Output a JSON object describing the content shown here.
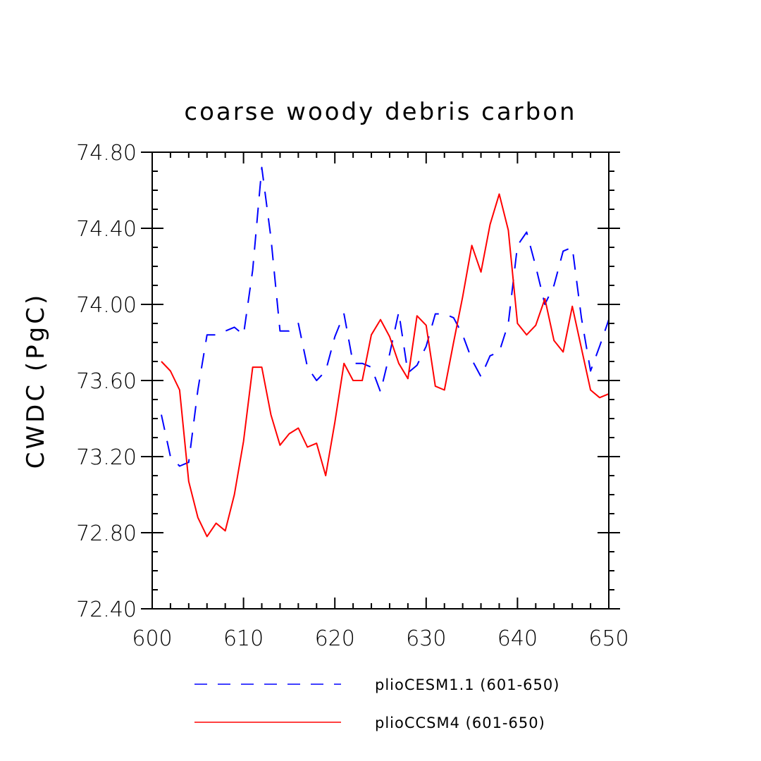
{
  "chart_data": {
    "type": "line",
    "title": "coarse woody debris carbon",
    "xlabel": "",
    "ylabel": "CWDC  (PgC)",
    "xlim": [
      600,
      650
    ],
    "ylim": [
      72.4,
      74.8
    ],
    "x_ticks": [
      600,
      610,
      620,
      630,
      640,
      650
    ],
    "x_tick_labels": [
      "600",
      "610",
      "620",
      "630",
      "640",
      "650"
    ],
    "y_ticks": [
      72.4,
      72.8,
      73.2,
      73.6,
      74.0,
      74.4,
      74.8
    ],
    "y_tick_labels": [
      "72.40",
      "72.80",
      "73.20",
      "73.60",
      "74.00",
      "74.40",
      "74.80"
    ],
    "x": [
      601,
      602,
      603,
      604,
      605,
      606,
      607,
      608,
      609,
      610,
      611,
      612,
      613,
      614,
      615,
      616,
      617,
      618,
      619,
      620,
      621,
      622,
      623,
      624,
      625,
      626,
      627,
      628,
      629,
      630,
      631,
      632,
      633,
      634,
      635,
      636,
      637,
      638,
      639,
      640,
      641,
      642,
      643,
      644,
      645,
      646,
      647,
      648,
      649,
      650
    ],
    "series": [
      {
        "name": "plioCESM1.1 (601-650)",
        "color": "#0000ff",
        "style": "dashed",
        "values": [
          73.42,
          73.2,
          73.15,
          73.17,
          73.55,
          73.84,
          73.84,
          73.86,
          73.88,
          73.84,
          74.18,
          74.72,
          74.35,
          73.86,
          73.86,
          73.9,
          73.67,
          73.6,
          73.65,
          73.83,
          73.95,
          73.69,
          73.69,
          73.67,
          73.54,
          73.74,
          73.96,
          73.64,
          73.68,
          73.78,
          73.95,
          73.95,
          73.93,
          73.84,
          73.71,
          73.62,
          73.73,
          73.75,
          73.9,
          74.31,
          74.38,
          74.2,
          74.0,
          74.1,
          74.28,
          74.3,
          73.93,
          73.65,
          73.78,
          73.92
        ]
      },
      {
        "name": "plioCCSM4 (601-650)",
        "color": "#ff0000",
        "style": "solid",
        "values": [
          73.7,
          73.65,
          73.55,
          73.07,
          72.88,
          72.78,
          72.85,
          72.81,
          73.0,
          73.28,
          73.67,
          73.67,
          73.42,
          73.26,
          73.32,
          73.35,
          73.25,
          73.27,
          73.1,
          73.38,
          73.69,
          73.6,
          73.6,
          73.84,
          73.92,
          73.83,
          73.69,
          73.61,
          73.94,
          73.89,
          73.57,
          73.55,
          73.8,
          74.04,
          74.31,
          74.17,
          74.42,
          74.58,
          74.39,
          73.9,
          73.84,
          73.89,
          74.03,
          73.81,
          73.75,
          73.99,
          73.77,
          73.55,
          73.51,
          73.53
        ]
      }
    ],
    "legend_position": "bottom-center"
  }
}
